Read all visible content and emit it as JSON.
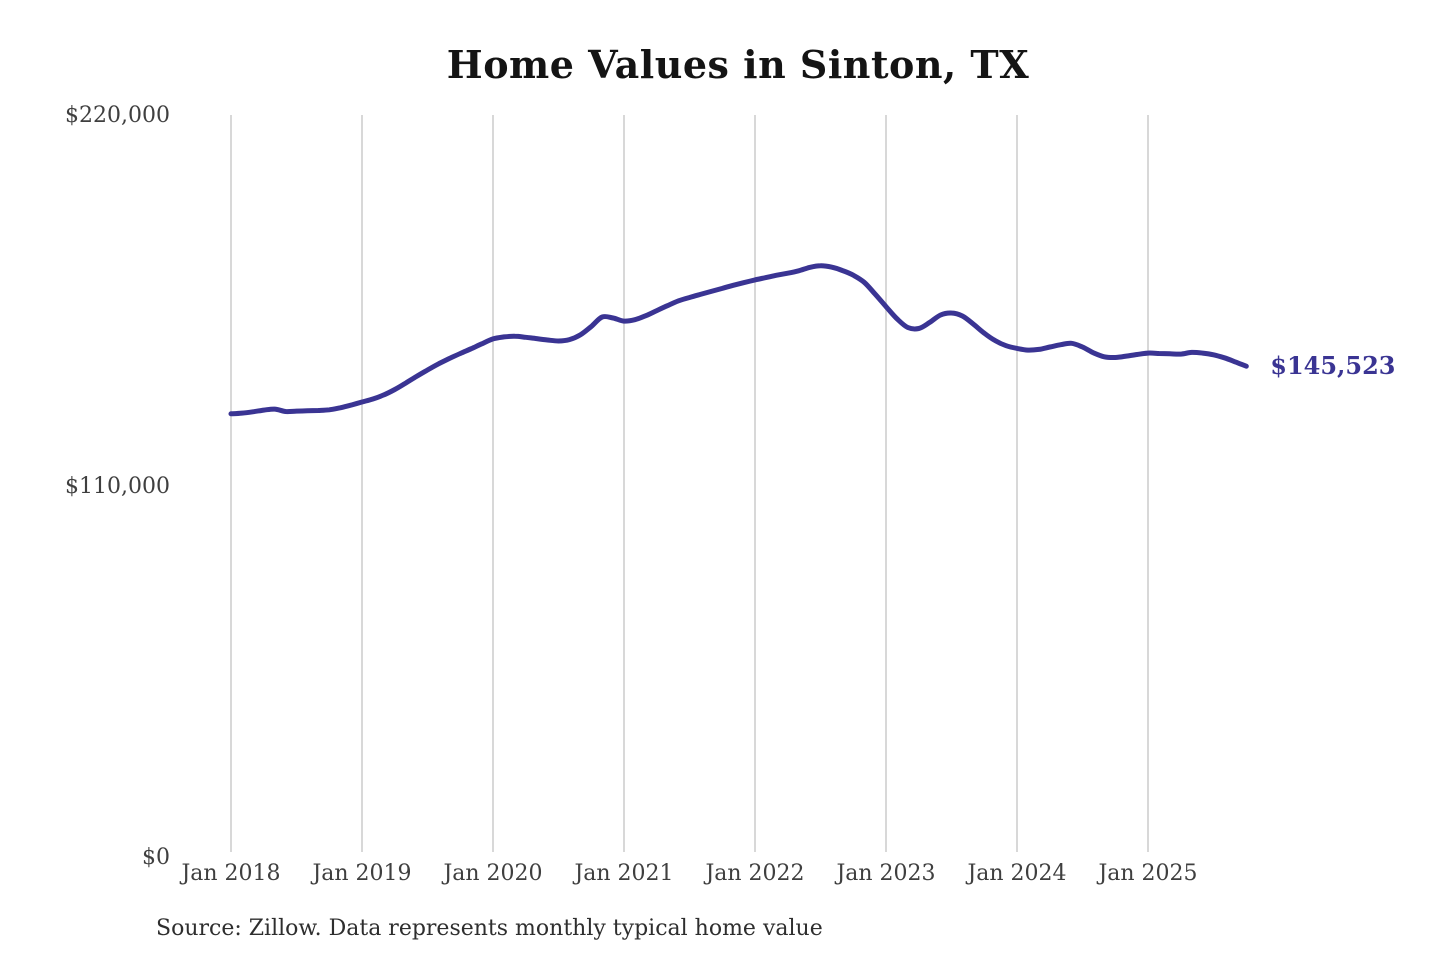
{
  "chart_data": {
    "type": "line",
    "title": "Home Values in Sinton, TX",
    "source_note": "Source: Zillow. Data represents monthly typical home value",
    "legend_position": "none",
    "grid": "vertical year gridlines only",
    "ylim": [
      0,
      220000
    ],
    "y_ticks": [
      {
        "label": "$0",
        "value": 0
      },
      {
        "label": "$110,000",
        "value": 110000
      },
      {
        "label": "$220,000",
        "value": 220000
      }
    ],
    "x_tick_labels": [
      "Jan 2018",
      "Jan 2019",
      "Jan 2020",
      "Jan 2021",
      "Jan 2022",
      "Jan 2023",
      "Jan 2024",
      "Jan 2025"
    ],
    "end_label": "$145,523",
    "end_value": 145523,
    "series": [
      {
        "name": "Monthly typical home value",
        "frequency": "monthly",
        "start_month": "Jan 2018",
        "end_month": "Oct 2025",
        "values": [
          131400,
          131600,
          132000,
          132500,
          132800,
          132100,
          132200,
          132300,
          132400,
          132600,
          133200,
          134000,
          134900,
          135800,
          137000,
          138600,
          140500,
          142500,
          144400,
          146200,
          147800,
          149300,
          150700,
          152200,
          153600,
          154200,
          154400,
          154100,
          153700,
          153300,
          153000,
          153400,
          154800,
          157300,
          160100,
          159800,
          158900,
          159300,
          160500,
          162000,
          163500,
          164900,
          165900,
          166800,
          167700,
          168600,
          169500,
          170300,
          171100,
          171800,
          172500,
          173100,
          173800,
          174800,
          175300,
          174900,
          173900,
          172500,
          170400,
          166900,
          163200,
          159600,
          157000,
          156700,
          158500,
          160700,
          161300,
          160400,
          158000,
          155300,
          153100,
          151600,
          150800,
          150300,
          150500,
          151200,
          151900,
          152300,
          151200,
          149500,
          148300,
          148100,
          148500,
          149000,
          149400,
          149300,
          149200,
          149100,
          149600,
          149400,
          148900,
          148000,
          146800,
          145523
        ]
      }
    ],
    "colors": {
      "line": "#3a3493",
      "end_label": "#3a3493",
      "title": "#141414",
      "tick_label": "#3f3f3f",
      "gridline": "#cccccc",
      "source_note": "#2e2e2e",
      "background": "#ffffff"
    }
  }
}
